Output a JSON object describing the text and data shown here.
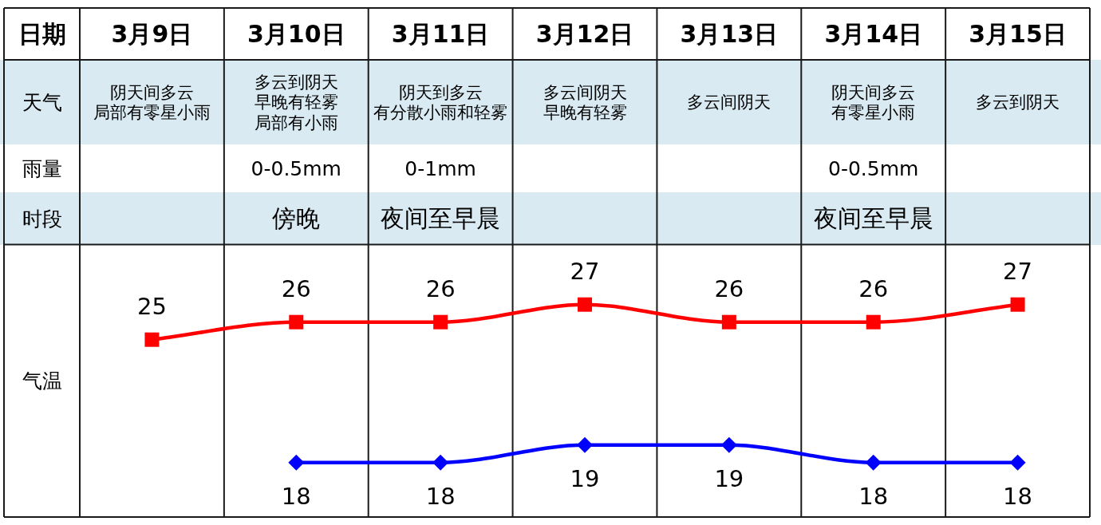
{
  "chart_data": [
    {
      "type": "heatmap",
      "xlabel": "日期",
      "categories": [
        "3月9日",
        "3月10日",
        "3月11日",
        "3月12日",
        "3月13日",
        "3月14日",
        "3月15日"
      ],
      "y_categories": [
        "天气",
        "雨量",
        "时段"
      ],
      "cells": [
        [
          null,
          null,
          null,
          null,
          null,
          null,
          null
        ],
        [
          null,
          null,
          null,
          null,
          null,
          null,
          null
        ],
        [
          null,
          null,
          null,
          null,
          null,
          null,
          null
        ]
      ],
      "cell_labels": [
        [
          "阴天间多云局部有零星小雨",
          "多云到阴天早晚有轻雾局部有小雨",
          "阴天到多云有分散小雨和轻雾",
          "多云间阴天早晚有轻雾",
          "多云间阴天",
          "阴天间多云有零星小雨",
          "多云到阴天"
        ],
        [
          null,
          "0-0.5mm",
          "0-1mm",
          null,
          null,
          "0-0.5mm",
          null
        ],
        [
          null,
          "傍晚",
          "夜间至早晨",
          null,
          null,
          "夜间至早晨",
          null
        ]
      ]
    },
    {
      "type": "line",
      "ylabel": "气温",
      "data_labels": true,
      "series": [
        {
          "color": "#ff0000",
          "marker": "square",
          "values": [
            25,
            26,
            26,
            27,
            26,
            26,
            27
          ]
        },
        {
          "color": "#0000ff",
          "marker": "diamond",
          "values": [
            null,
            18,
            18,
            19,
            19,
            18,
            18
          ]
        }
      ]
    }
  ]
}
